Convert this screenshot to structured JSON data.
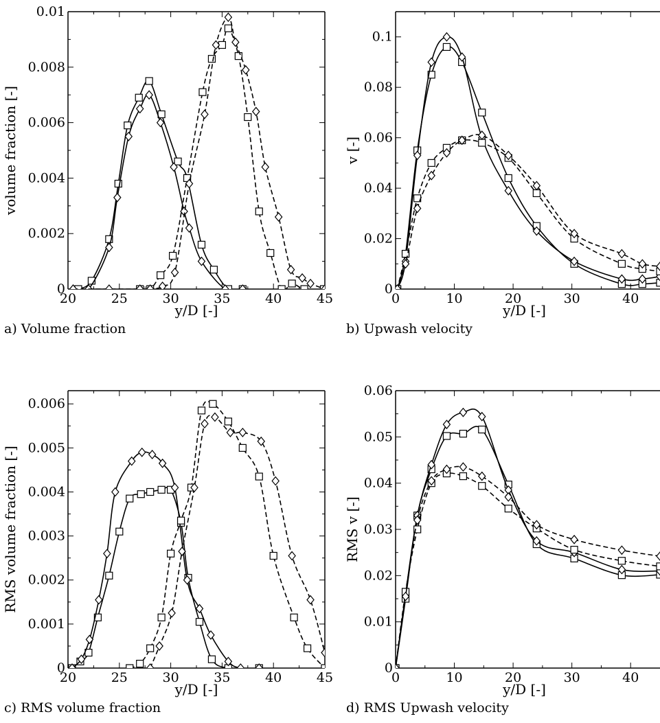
{
  "chart_data": [
    {
      "type": "line",
      "caption": "a) Volume fraction",
      "xlabel": "y/D [-]",
      "ylabel": "volume fraction [-]",
      "xlim": [
        20,
        45
      ],
      "ylim": [
        0,
        0.01
      ],
      "xticks": [
        20,
        25,
        30,
        35,
        40,
        45
      ],
      "yticks": [
        0,
        0.002,
        0.004,
        0.006,
        0.008,
        0.01
      ],
      "xtick_labels": [
        "20",
        "25",
        "30",
        "35",
        "40",
        "45"
      ],
      "ytick_labels": [
        "0",
        "0.002",
        "0.004",
        "0.006",
        "0.008",
        "0.01"
      ],
      "grid": false,
      "series": [
        {
          "line": "solid",
          "marker": "square",
          "x": [
            21.0,
            22.3,
            24.0,
            24.9,
            25.8,
            26.9,
            27.9,
            29.1,
            30.7,
            31.6,
            33.0,
            34.2,
            35.6,
            37.0
          ],
          "y": [
            0.0,
            0.0003,
            0.0018,
            0.0038,
            0.0059,
            0.0069,
            0.0075,
            0.0063,
            0.0046,
            0.004,
            0.0016,
            0.0007,
            0.0,
            0.0
          ]
        },
        {
          "line": "solid",
          "marker": "diamond",
          "x": [
            20.5,
            22.0,
            24.0,
            24.8,
            25.9,
            27.0,
            27.9,
            29.0,
            30.3,
            31.3,
            31.8,
            33.0,
            35.3,
            37.0
          ],
          "y": [
            0.0,
            0.0,
            0.0015,
            0.0033,
            0.0055,
            0.0065,
            0.007,
            0.006,
            0.0044,
            0.0028,
            0.0022,
            0.001,
            0.0,
            0.0
          ]
        },
        {
          "line": "dashed",
          "marker": "square",
          "x": [
            27.0,
            28.0,
            29.0,
            30.2,
            31.6,
            33.1,
            34.0,
            35.0,
            35.6,
            36.6,
            37.5,
            38.6,
            39.7,
            40.8,
            41.8,
            43.0,
            44.9
          ],
          "y": [
            0.0,
            0.0,
            0.0005,
            0.0012,
            0.004,
            0.0071,
            0.0083,
            0.0088,
            0.0094,
            0.0084,
            0.0062,
            0.0028,
            0.0013,
            0.0,
            0.0002,
            0.0,
            0.0
          ]
        },
        {
          "line": "dashed",
          "marker": "diamond",
          "x": [
            20.5,
            24.0,
            27.0,
            28.0,
            29.2,
            30.4,
            31.8,
            33.3,
            34.4,
            35.6,
            36.3,
            37.3,
            38.3,
            39.2,
            40.5,
            41.7,
            42.8,
            43.6,
            45.0
          ],
          "y": [
            0.0,
            0.0,
            0.0,
            0.0,
            0.0001,
            0.0006,
            0.0038,
            0.0063,
            0.0088,
            0.0098,
            0.0089,
            0.0079,
            0.0064,
            0.0044,
            0.0026,
            0.0007,
            0.0004,
            0.0002,
            0.0
          ]
        }
      ]
    },
    {
      "type": "line",
      "caption": "b) Upwash velocity",
      "xlabel": "y/D [-]",
      "ylabel": "v [-]",
      "xlim": [
        0,
        45
      ],
      "ylim": [
        0,
        0.11
      ],
      "xticks": [
        0,
        10,
        20,
        30,
        40
      ],
      "yticks": [
        0,
        0.02,
        0.04,
        0.06,
        0.08,
        0.1
      ],
      "xtick_labels": [
        "0",
        "10",
        "20",
        "30",
        "40"
      ],
      "ytick_labels": [
        "0",
        "0.02",
        "0.04",
        "0.06",
        "0.08",
        "0.1"
      ],
      "grid": false,
      "series": [
        {
          "line": "solid",
          "marker": "square",
          "x": [
            0.3,
            1.7,
            3.7,
            6.1,
            8.7,
            11.3,
            14.7,
            19.2,
            24.0,
            30.4,
            38.5,
            42.0,
            45.0
          ],
          "y": [
            0.0,
            0.014,
            0.055,
            0.085,
            0.096,
            0.09,
            0.07,
            0.044,
            0.025,
            0.01,
            0.002,
            0.002,
            0.0025
          ]
        },
        {
          "line": "solid",
          "marker": "diamond",
          "x": [
            0.3,
            1.7,
            3.7,
            6.1,
            8.7,
            11.3,
            14.7,
            19.2,
            24.0,
            30.4,
            38.5,
            42.0,
            45.0
          ],
          "y": [
            0.0,
            0.011,
            0.053,
            0.09,
            0.1,
            0.092,
            0.06,
            0.039,
            0.023,
            0.011,
            0.004,
            0.004,
            0.005
          ]
        },
        {
          "line": "dashed",
          "marker": "square",
          "x": [
            0.3,
            1.7,
            3.7,
            6.1,
            8.7,
            11.3,
            14.7,
            19.2,
            24.0,
            30.4,
            38.5,
            42.0,
            45.0
          ],
          "y": [
            0.0,
            0.014,
            0.036,
            0.05,
            0.056,
            0.059,
            0.058,
            0.052,
            0.038,
            0.02,
            0.01,
            0.008,
            0.007
          ]
        },
        {
          "line": "dashed",
          "marker": "diamond",
          "x": [
            0.3,
            1.7,
            3.7,
            6.1,
            8.7,
            11.3,
            14.7,
            19.2,
            24.0,
            30.4,
            38.5,
            42.0,
            45.0
          ],
          "y": [
            0.0,
            0.01,
            0.032,
            0.045,
            0.054,
            0.059,
            0.061,
            0.053,
            0.041,
            0.022,
            0.014,
            0.01,
            0.009
          ]
        }
      ]
    },
    {
      "type": "line",
      "caption": "c) RMS volume fraction",
      "xlabel": "y/D [-]",
      "ylabel": "RMS volume fraction [-]",
      "xlim": [
        20,
        45
      ],
      "ylim": [
        0,
        0.0063
      ],
      "xticks": [
        20,
        25,
        30,
        35,
        40,
        45
      ],
      "yticks": [
        0,
        0.001,
        0.002,
        0.003,
        0.004,
        0.005,
        0.006
      ],
      "xtick_labels": [
        "20",
        "25",
        "30",
        "35",
        "40",
        "45"
      ],
      "ytick_labels": [
        "0",
        "0.001",
        "0.002",
        "0.003",
        "0.004",
        "0.005",
        "0.006"
      ],
      "grid": false,
      "series": [
        {
          "line": "solid",
          "marker": "square",
          "x": [
            20.4,
            21.2,
            22.0,
            22.9,
            24.0,
            25.0,
            26.0,
            27.1,
            28.0,
            29.1,
            30.0,
            31.0,
            31.7,
            32.8,
            34.0,
            35.6,
            38.6
          ],
          "y": [
            0.0,
            0.00015,
            0.00035,
            0.00115,
            0.0021,
            0.0031,
            0.00385,
            0.00395,
            0.004,
            0.00405,
            0.00405,
            0.0033,
            0.00205,
            0.00105,
            0.0002,
            0.0,
            0.0
          ]
        },
        {
          "line": "solid",
          "marker": "diamond",
          "x": [
            20.4,
            21.3,
            22.1,
            23.0,
            23.8,
            24.6,
            26.2,
            27.2,
            28.2,
            29.2,
            30.4,
            31.6,
            32.8,
            33.9,
            35.6,
            36.8,
            38.6
          ],
          "y": [
            0.0,
            0.0002,
            0.00065,
            0.00155,
            0.0026,
            0.004,
            0.0047,
            0.0049,
            0.00485,
            0.00465,
            0.0041,
            0.002,
            0.00135,
            0.00075,
            0.00015,
            0.0,
            0.0
          ]
        },
        {
          "line": "dashed",
          "marker": "square",
          "x": [
            26.0,
            27.0,
            28.0,
            29.1,
            30.0,
            31.0,
            32.0,
            33.0,
            34.1,
            35.6,
            37.0,
            38.6,
            40.0,
            42.0,
            43.3,
            45.0
          ],
          "y": [
            0.0,
            0.0001,
            0.00045,
            0.00115,
            0.0026,
            0.00335,
            0.0041,
            0.00585,
            0.006,
            0.0056,
            0.005,
            0.00435,
            0.00255,
            0.00115,
            0.00045,
            0.0
          ]
        },
        {
          "line": "dashed",
          "marker": "diamond",
          "x": [
            28.0,
            28.9,
            30.1,
            31.1,
            32.3,
            33.3,
            34.3,
            35.8,
            37.0,
            38.8,
            40.2,
            41.8,
            43.6,
            45.0
          ],
          "y": [
            0.0,
            0.0005,
            0.00125,
            0.00265,
            0.0041,
            0.00555,
            0.0057,
            0.00535,
            0.00535,
            0.00515,
            0.00425,
            0.00255,
            0.00155,
            0.00035
          ]
        }
      ]
    },
    {
      "type": "line",
      "caption": "d) RMS Upwash velocity",
      "xlabel": "y/D [-]",
      "ylabel": "RMS v [-]",
      "xlim": [
        0,
        45
      ],
      "ylim": [
        0,
        0.06
      ],
      "xticks": [
        0,
        10,
        20,
        30,
        40
      ],
      "yticks": [
        0,
        0.01,
        0.02,
        0.03,
        0.04,
        0.05,
        0.06
      ],
      "xtick_labels": [
        "0",
        "10",
        "20",
        "30",
        "40"
      ],
      "ytick_labels": [
        "0",
        "0.01",
        "0.02",
        "0.03",
        "0.04",
        "0.05",
        "0.06"
      ],
      "grid": false,
      "series": [
        {
          "line": "solid",
          "marker": "square",
          "x": [
            0.0,
            1.7,
            3.7,
            6.1,
            8.7,
            11.5,
            14.7,
            19.2,
            24.0,
            30.4,
            38.5,
            45.0
          ],
          "y": [
            0.0,
            0.015,
            0.033,
            0.043,
            0.0502,
            0.0507,
            0.0516,
            0.0397,
            0.0268,
            0.0237,
            0.0201,
            0.0202
          ]
        },
        {
          "line": "solid",
          "marker": "diamond",
          "x": [
            0.0,
            1.7,
            3.7,
            6.1,
            8.7,
            11.5,
            14.7,
            19.2,
            24.0,
            30.4,
            38.5,
            45.0
          ],
          "y": [
            0.0,
            0.016,
            0.033,
            0.044,
            0.0527,
            0.0553,
            0.0544,
            0.0385,
            0.0275,
            0.025,
            0.0213,
            0.021
          ]
        },
        {
          "line": "dashed",
          "marker": "square",
          "x": [
            0.0,
            1.7,
            3.7,
            6.1,
            8.7,
            11.5,
            14.7,
            19.2,
            24.0,
            30.4,
            38.5,
            45.0
          ],
          "y": [
            0.0,
            0.0165,
            0.03,
            0.04,
            0.0421,
            0.0415,
            0.0394,
            0.0345,
            0.0302,
            0.0256,
            0.0232,
            0.022
          ]
        },
        {
          "line": "dashed",
          "marker": "diamond",
          "x": [
            0.0,
            1.7,
            3.7,
            6.1,
            8.7,
            11.5,
            14.7,
            19.2,
            24.0,
            30.4,
            38.5,
            45.0
          ],
          "y": [
            0.0,
            0.0155,
            0.032,
            0.0405,
            0.043,
            0.0435,
            0.0415,
            0.037,
            0.031,
            0.0278,
            0.0255,
            0.0242
          ]
        }
      ]
    }
  ]
}
